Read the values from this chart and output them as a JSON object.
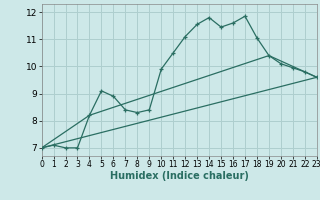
{
  "title": "",
  "xlabel": "Humidex (Indice chaleur)",
  "background_color": "#cde8e8",
  "grid_color": "#aecece",
  "line_color": "#2a6e62",
  "line1_x": [
    0,
    1,
    2,
    3,
    4,
    5,
    6,
    7,
    8,
    9,
    10,
    11,
    12,
    13,
    14,
    15,
    16,
    17,
    18,
    19,
    20,
    21,
    22,
    23
  ],
  "line1_y": [
    7.0,
    7.1,
    7.0,
    7.0,
    8.2,
    9.1,
    8.9,
    8.4,
    8.3,
    8.4,
    9.9,
    10.5,
    11.1,
    11.55,
    11.8,
    11.45,
    11.6,
    11.85,
    11.05,
    10.4,
    10.1,
    9.95,
    9.8,
    9.6
  ],
  "line2_x": [
    0,
    23
  ],
  "line2_y": [
    7.0,
    9.6
  ],
  "line3_x": [
    0,
    4,
    19,
    23
  ],
  "line3_y": [
    7.0,
    8.2,
    10.4,
    9.6
  ],
  "xlim": [
    0,
    23
  ],
  "ylim": [
    6.7,
    12.3
  ],
  "yticks": [
    7,
    8,
    9,
    10,
    11,
    12
  ],
  "xticks": [
    0,
    1,
    2,
    3,
    4,
    5,
    6,
    7,
    8,
    9,
    10,
    11,
    12,
    13,
    14,
    15,
    16,
    17,
    18,
    19,
    20,
    21,
    22,
    23
  ]
}
